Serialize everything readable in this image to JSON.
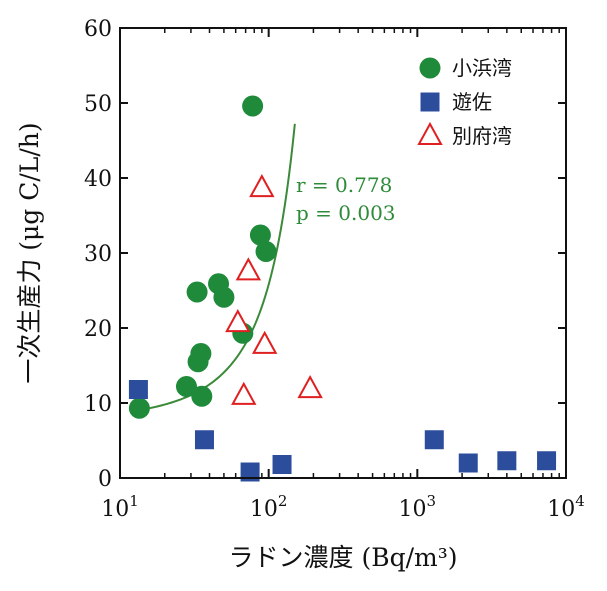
{
  "chart_data": {
    "type": "scatter",
    "title": "",
    "xlabel": "ラドン濃度 (Bq/m³)",
    "ylabel": "一次生産力 (μg C/L/h)",
    "xscale": "log",
    "xlim": [
      10,
      10000
    ],
    "ylim": [
      0,
      60
    ],
    "yticks": [
      0,
      10,
      20,
      30,
      40,
      50,
      60
    ],
    "xticks": [
      {
        "value": 10,
        "base": "10",
        "exp": "1"
      },
      {
        "value": 100,
        "base": "10",
        "exp": "2"
      },
      {
        "value": 1000,
        "base": "10",
        "exp": "3"
      },
      {
        "value": 10000,
        "base": "10",
        "exp": "4"
      }
    ],
    "grid": false,
    "legend_position": "top-right",
    "series": [
      {
        "name": "小浜湾",
        "marker": "circle",
        "color": "#1e8a3a",
        "points": [
          [
            13.5,
            9.3
          ],
          [
            28,
            12.2
          ],
          [
            33,
            24.8
          ],
          [
            33.5,
            15.5
          ],
          [
            35,
            16.6
          ],
          [
            35.5,
            10.9
          ],
          [
            46,
            25.9
          ],
          [
            50,
            24.1
          ],
          [
            67,
            19.3
          ],
          [
            78,
            49.6
          ],
          [
            88,
            32.4
          ],
          [
            96,
            30.2
          ]
        ]
      },
      {
        "name": "遊佐",
        "marker": "square",
        "color": "#2c4d9c",
        "points": [
          [
            13.3,
            11.8
          ],
          [
            37,
            5.1
          ],
          [
            75,
            0.8
          ],
          [
            123,
            1.8
          ],
          [
            1300,
            5.1
          ],
          [
            2200,
            2.0
          ],
          [
            4000,
            2.3
          ],
          [
            7400,
            2.3
          ]
        ]
      },
      {
        "name": "別府湾",
        "marker": "triangle-open",
        "color": "#e02020",
        "points": [
          [
            62,
            20.6
          ],
          [
            68,
            10.9
          ],
          [
            73,
            27.5
          ],
          [
            90,
            38.6
          ],
          [
            94,
            17.7
          ],
          [
            190,
            11.8
          ]
        ]
      }
    ],
    "fit_curve": {
      "series": "小浜湾",
      "color": "#3a8a3a",
      "a": 0.98,
      "b": 0.000178,
      "x_range": [
        13,
        150
      ],
      "annotations": [
        "r = 0.778",
        "p = 0.003"
      ]
    }
  }
}
